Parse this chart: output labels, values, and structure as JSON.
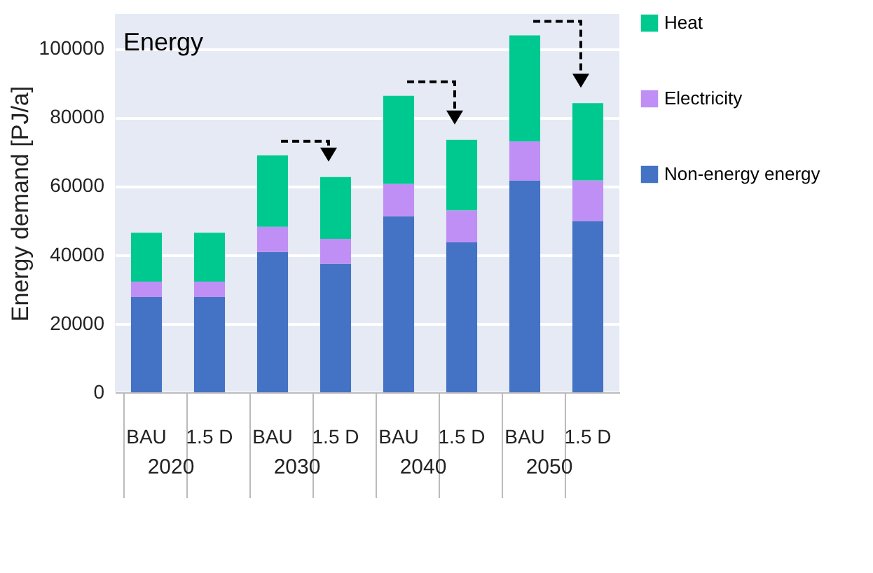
{
  "chart_data": {
    "type": "bar",
    "title": "Energy",
    "ylabel": "Energy demand [PJ/a]",
    "categories": [
      "BAU",
      "1.5 D",
      "BAU",
      "1.5 D",
      "BAU",
      "1.5 D",
      "BAU",
      "1.5 D"
    ],
    "annotations": [
      "2020",
      "2030",
      "2040",
      "2050"
    ],
    "stacked": true,
    "series": [
      {
        "name": "Non-energy energy",
        "color": "#4472c4",
        "values": [
          27700,
          27700,
          40800,
          37400,
          51200,
          43600,
          61600,
          49800
        ]
      },
      {
        "name": "Electricity",
        "color": "#c08ff5",
        "values": [
          4500,
          4500,
          7300,
          7200,
          9400,
          9300,
          11400,
          11800
        ]
      },
      {
        "name": "Heat",
        "color": "#00c98f",
        "values": [
          14200,
          14200,
          20800,
          18000,
          25600,
          20500,
          30800,
          22500
        ]
      }
    ],
    "ylim": [
      0,
      110000
    ],
    "yticks": [
      0,
      20000,
      40000,
      60000,
      80000,
      100000
    ],
    "grid": "y",
    "legend": "right"
  }
}
